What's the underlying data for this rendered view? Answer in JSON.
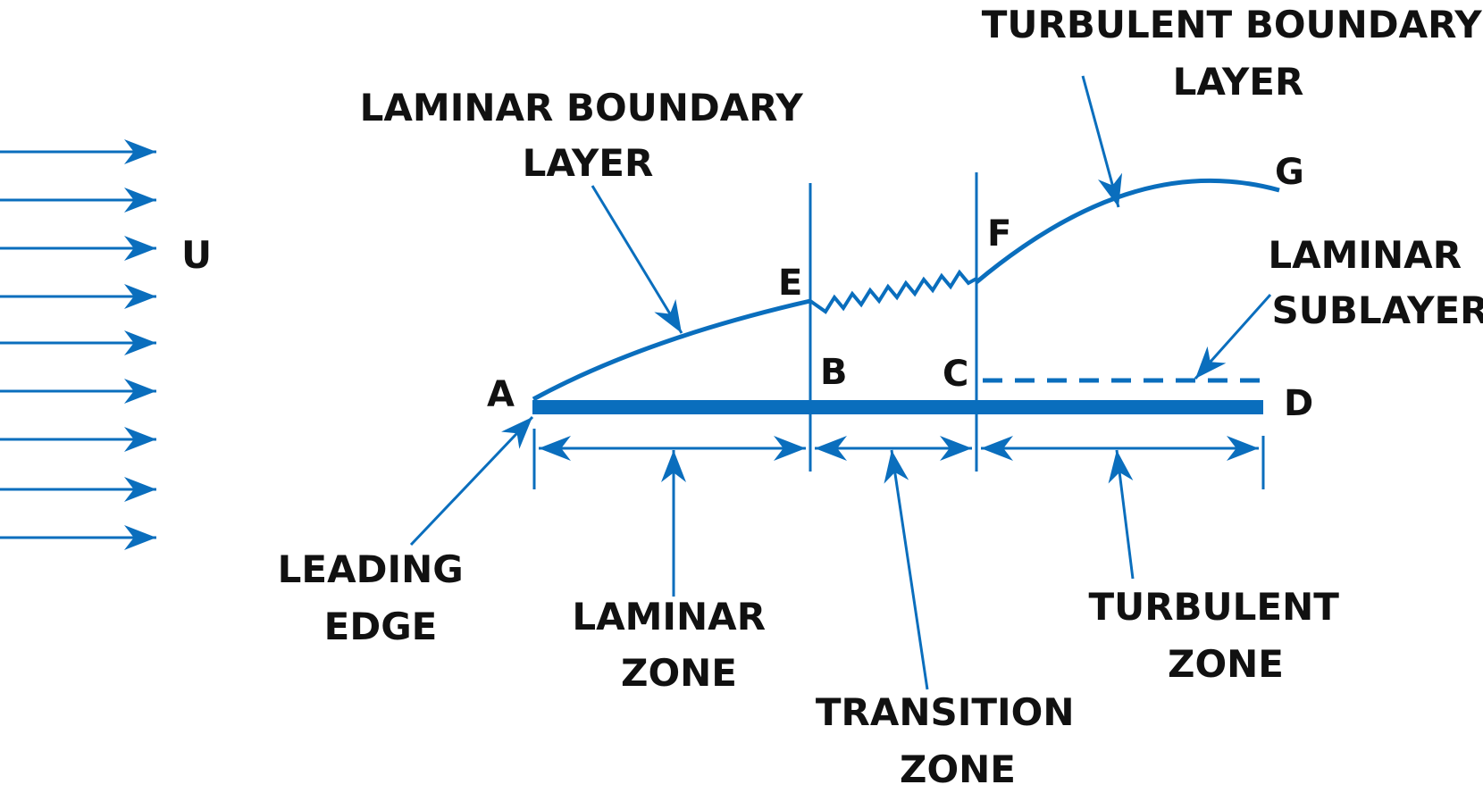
{
  "colors": {
    "line": "#0a6ebd",
    "text": "#111111"
  },
  "labels": {
    "velocity": "U",
    "laminar_boundary_layer": [
      "LAMINAR BOUNDARY",
      "LAYER"
    ],
    "turbulent_boundary_layer": [
      "TURBULENT BOUNDARY",
      "LAYER"
    ],
    "laminar_sublayer": [
      "LAMINAR",
      "SUBLAYER"
    ],
    "leading_edge": [
      "LEADING",
      "EDGE"
    ],
    "laminar_zone": [
      "LAMINAR",
      "ZONE"
    ],
    "transition_zone": [
      "TRANSITION",
      "ZONE"
    ],
    "turbulent_zone": [
      "TURBULENT",
      "ZONE"
    ]
  },
  "points": {
    "A": "A",
    "B": "B",
    "C": "C",
    "D": "D",
    "E": "E",
    "F": "F",
    "G": "G"
  },
  "icons": {
    "flow_arrow": "right-arrow-icon"
  }
}
